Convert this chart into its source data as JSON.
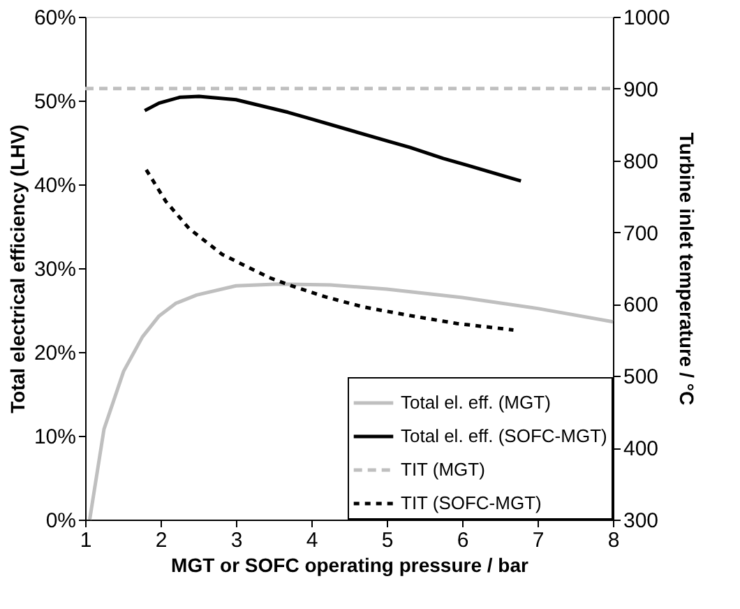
{
  "chart_data": {
    "type": "line",
    "xlabel": "MGT or SOFC operating pressure / bar",
    "ylabel": "Total electrical efficiency (LHV)",
    "y2label": "Turbine inlet temperature / °C",
    "xlim": [
      1,
      8
    ],
    "xticks": [
      1,
      2,
      3,
      4,
      5,
      6,
      7,
      8
    ],
    "ylim": [
      0,
      60
    ],
    "yticks": [
      {
        "value": 0,
        "label": "0%"
      },
      {
        "value": 10,
        "label": "10%"
      },
      {
        "value": 20,
        "label": "20%"
      },
      {
        "value": 30,
        "label": "30%"
      },
      {
        "value": 40,
        "label": "40%"
      },
      {
        "value": 50,
        "label": "50%"
      },
      {
        "value": 60,
        "label": "60%"
      }
    ],
    "y2lim": [
      300,
      1000
    ],
    "y2ticks": [
      300,
      400,
      500,
      600,
      700,
      800,
      900,
      1000
    ],
    "grid": false,
    "legend": "bottom right",
    "marker": "none",
    "series": [
      {
        "name": "Total el. eff. (MGT)",
        "color": "#bfbfbf",
        "line_style": "solid",
        "x": [
          1.06,
          1.25,
          1.51,
          1.76,
          1.98,
          2.2,
          2.48,
          3.0,
          3.57,
          4.25,
          5.0,
          6.0,
          7.0,
          8.0
        ],
        "values": [
          0,
          10.8,
          17.7,
          21.8,
          24.3,
          25.8,
          26.8,
          27.9,
          28.1,
          28.0,
          27.5,
          26.5,
          25.2,
          23.6
        ]
      },
      {
        "name": "Total el. eff. (SOFC-MGT)",
        "color": "#000000",
        "line_style": "solid",
        "x": [
          1.79,
          1.98,
          2.26,
          2.51,
          3.0,
          3.69,
          4.0,
          4.5,
          5.0,
          5.31,
          5.75,
          6.06,
          6.78
        ],
        "values": [
          48.8,
          49.7,
          50.4,
          50.5,
          50.1,
          48.6,
          47.8,
          46.5,
          45.2,
          44.4,
          43.1,
          42.3,
          40.4
        ]
      },
      {
        "name": "TIT (MGT)",
        "color": "#bfbfbf",
        "line_style": "dashed",
        "axis": "y2",
        "x": [
          1,
          8
        ],
        "values": [
          900,
          900
        ]
      },
      {
        "name": "TIT (SOFC-MGT)",
        "color": "#000000",
        "line_style": "dotted",
        "axis": "y2",
        "x": [
          1.81,
          2.07,
          2.38,
          2.82,
          3.13,
          3.44,
          3.75,
          4.19,
          4.69,
          5.31,
          5.93,
          6.68
        ],
        "values": [
          787,
          743,
          705,
          669,
          653,
          637,
          625,
          610,
          596,
          584,
          573,
          564
        ]
      }
    ]
  }
}
